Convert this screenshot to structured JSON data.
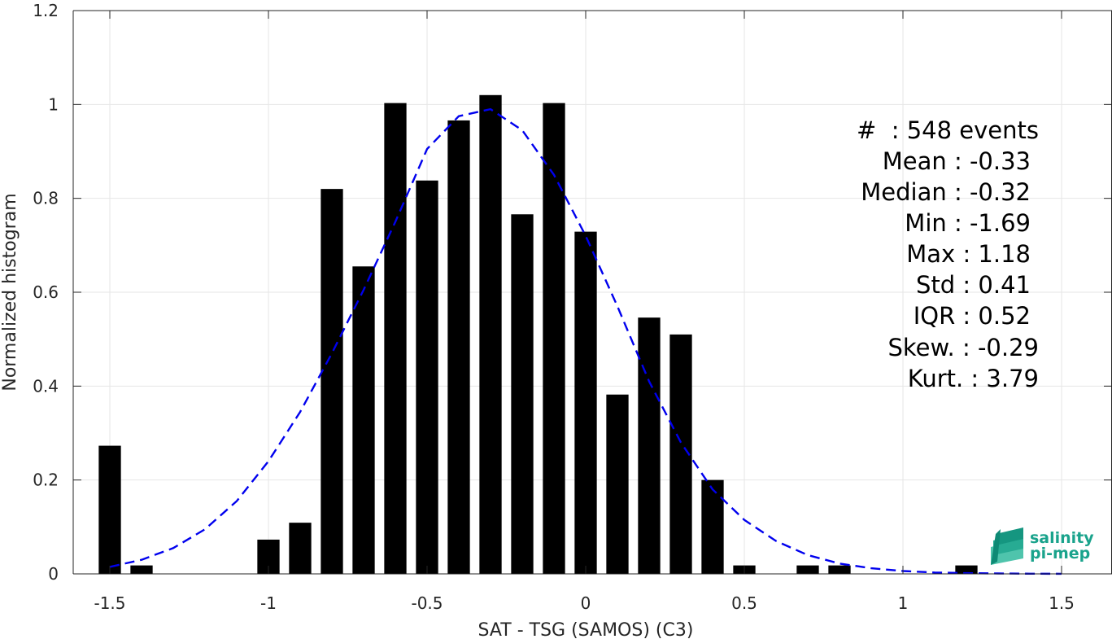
{
  "chart_data": {
    "type": "bar",
    "xlabel": "SAT - TSG (SAMOS) (C3)",
    "ylabel": "Normalized histogram",
    "xlim": [
      -1.6,
      1.6
    ],
    "ylim": [
      0,
      1.2
    ],
    "xticks": [
      -1.5,
      -1,
      -0.5,
      0,
      0.5,
      1,
      1.5
    ],
    "xtick_labels": [
      "-1.5",
      "-1",
      "-0.5",
      "0",
      "0.5",
      "1",
      "1.5"
    ],
    "yticks": [
      0,
      0.2,
      0.4,
      0.6,
      0.8,
      1,
      1.2
    ],
    "ytick_labels": [
      "0",
      "0.2",
      "0.4",
      "0.6",
      "0.8",
      "1",
      "1.2"
    ],
    "grid": true,
    "bar_width": 0.07,
    "bar_color": "#000000",
    "bars": [
      {
        "x": -1.5,
        "y": 0.273
      },
      {
        "x": -1.4,
        "y": 0.018
      },
      {
        "x": -1.0,
        "y": 0.073
      },
      {
        "x": -0.9,
        "y": 0.109
      },
      {
        "x": -0.8,
        "y": 0.82
      },
      {
        "x": -0.7,
        "y": 0.655
      },
      {
        "x": -0.6,
        "y": 1.003
      },
      {
        "x": -0.5,
        "y": 0.838
      },
      {
        "x": -0.4,
        "y": 0.966
      },
      {
        "x": -0.3,
        "y": 1.02
      },
      {
        "x": -0.2,
        "y": 0.766
      },
      {
        "x": -0.1,
        "y": 1.003
      },
      {
        "x": 0.0,
        "y": 0.729
      },
      {
        "x": 0.1,
        "y": 0.382
      },
      {
        "x": 0.2,
        "y": 0.546
      },
      {
        "x": 0.3,
        "y": 0.51
      },
      {
        "x": 0.4,
        "y": 0.2
      },
      {
        "x": 0.5,
        "y": 0.018
      },
      {
        "x": 0.7,
        "y": 0.018
      },
      {
        "x": 0.8,
        "y": 0.018
      },
      {
        "x": 1.2,
        "y": 0.018
      }
    ],
    "fit_curve": {
      "style": "dashed",
      "color": "#0000ee",
      "x": [
        -1.5,
        -1.4,
        -1.3,
        -1.2,
        -1.1,
        -1.0,
        -0.9,
        -0.8,
        -0.7,
        -0.6,
        -0.5,
        -0.4,
        -0.3,
        -0.2,
        -0.1,
        0.0,
        0.1,
        0.2,
        0.3,
        0.4,
        0.5,
        0.6,
        0.7,
        0.8,
        0.9,
        1.0,
        1.1,
        1.2,
        1.3,
        1.4,
        1.5
      ],
      "y": [
        0.015,
        0.03,
        0.055,
        0.095,
        0.155,
        0.24,
        0.345,
        0.47,
        0.605,
        0.75,
        0.905,
        0.975,
        0.99,
        0.945,
        0.85,
        0.72,
        0.57,
        0.41,
        0.28,
        0.18,
        0.115,
        0.07,
        0.04,
        0.022,
        0.012,
        0.006,
        0.003,
        0.0015,
        0.0008,
        0.0004,
        0.0002
      ]
    }
  },
  "stats": [
    "#  : 548 events",
    "Mean : -0.33",
    "Median : -0.32",
    "Min : -1.69",
    "Max : 1.18",
    "Std : 0.41",
    "IQR : 0.52",
    "Skew. : -0.29",
    "Kurt. : 3.79"
  ],
  "logo": {
    "line1": "salinity",
    "line2": "pi-mep",
    "accent": "#1aa38c"
  }
}
